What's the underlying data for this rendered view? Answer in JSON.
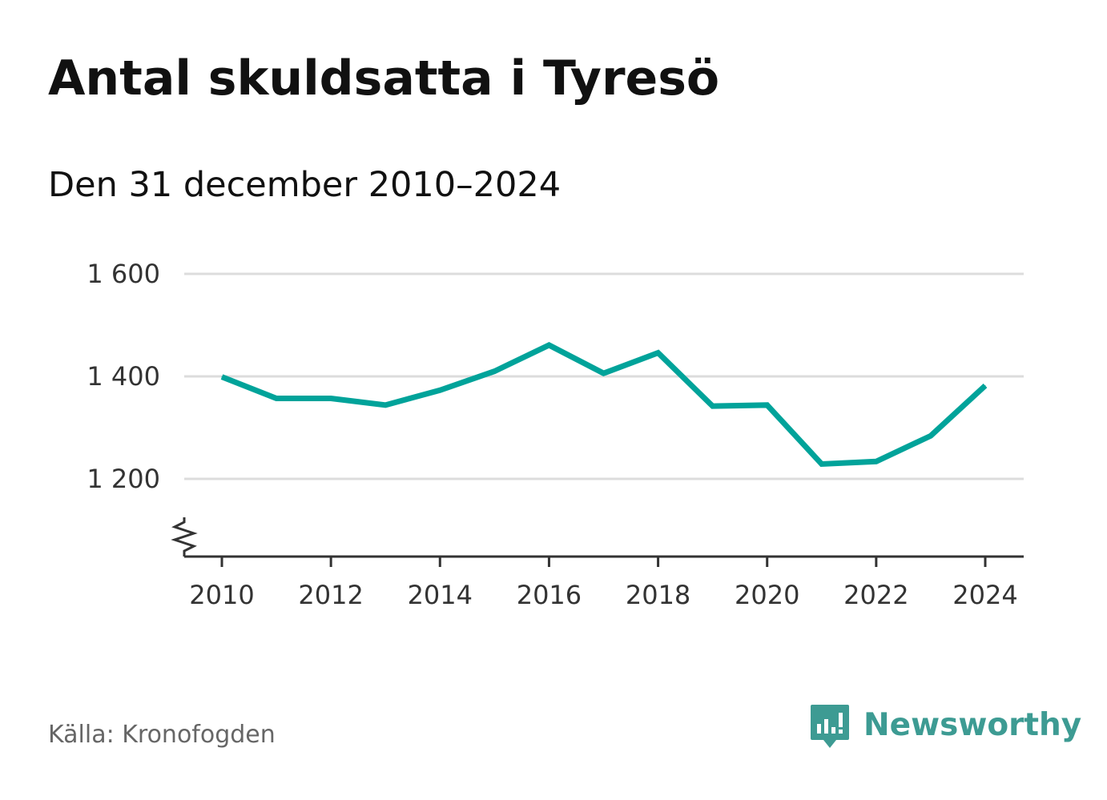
{
  "title": "Antal skuldsatta i Tyresö",
  "subtitle": "Den 31 december 2010–2024",
  "source": "Källa: Kronofogden",
  "brand": {
    "name": "Newsworthy",
    "icon": "newsworthy-logo-icon",
    "color": "#3d9b93"
  },
  "chart_data": {
    "type": "line",
    "x": [
      2010,
      2011,
      2012,
      2013,
      2014,
      2015,
      2016,
      2017,
      2018,
      2019,
      2020,
      2021,
      2022,
      2023,
      2024
    ],
    "series": [
      {
        "values": [
          1399,
          1357,
          1357,
          1344,
          1373,
          1410,
          1461,
          1406,
          1446,
          1342,
          1344,
          1229,
          1234,
          1284,
          1382
        ],
        "color": "#00a39a"
      }
    ],
    "ylim": [
      1130,
      1600
    ],
    "axis_break": true,
    "yticks": [
      1200,
      1400,
      1600
    ],
    "ytick_labels": [
      "1 200",
      "1 400",
      "1 600"
    ],
    "xticks": [
      2010,
      2012,
      2014,
      2016,
      2018,
      2020,
      2022,
      2024
    ],
    "xtick_labels": [
      "2010",
      "2012",
      "2014",
      "2016",
      "2018",
      "2020",
      "2022",
      "2024"
    ],
    "grid": true,
    "legend": "none"
  }
}
